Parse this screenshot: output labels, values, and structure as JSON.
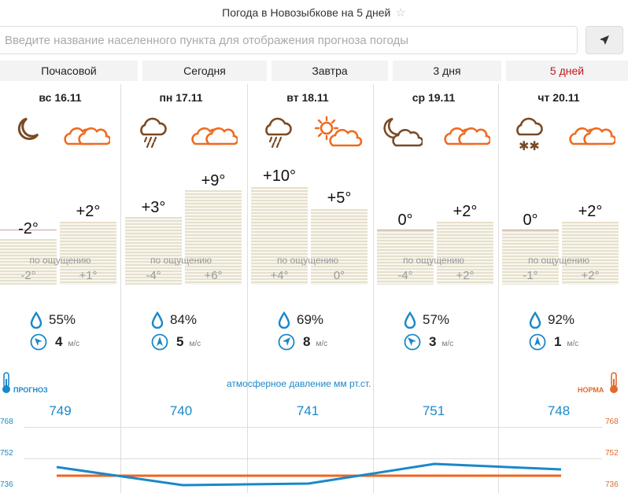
{
  "header": {
    "title": "Погода в Новозыбкове на 5 дней"
  },
  "search": {
    "placeholder": "Введите название населенного пункта для отображения прогноза погоды"
  },
  "tabs": [
    {
      "label": "Почасовой"
    },
    {
      "label": "Сегодня"
    },
    {
      "label": "Завтра"
    },
    {
      "label": "3 дня"
    },
    {
      "label": "5 дней",
      "active": true
    }
  ],
  "feels_label": "по ощущению",
  "wind_unit": "м/с",
  "days": [
    {
      "date": "вс 16.11",
      "night_icon": "moon-icon",
      "day_icon": "cloudy-icon",
      "night_temp": "-2°",
      "day_temp": "+2°",
      "night_feels": "-2°",
      "day_feels": "+1°",
      "humidity": "55%",
      "wind": "4",
      "pressure": "749"
    },
    {
      "date": "пн 17.11",
      "night_icon": "rain-cloud-icon",
      "day_icon": "cloudy-icon",
      "night_temp": "+3°",
      "day_temp": "+9°",
      "night_feels": "-4°",
      "day_feels": "+6°",
      "humidity": "84%",
      "wind": "5",
      "pressure": "740"
    },
    {
      "date": "вт 18.11",
      "night_icon": "rain-cloud-icon",
      "day_icon": "sun-cloud-icon",
      "night_temp": "+10°",
      "day_temp": "+5°",
      "night_feels": "+4°",
      "day_feels": "0°",
      "humidity": "69%",
      "wind": "8",
      "pressure": "741"
    },
    {
      "date": "ср 19.11",
      "night_icon": "moon-cloud-icon",
      "day_icon": "cloudy-icon",
      "night_temp": "0°",
      "day_temp": "+2°",
      "night_feels": "-4°",
      "day_feels": "+2°",
      "humidity": "57%",
      "wind": "3",
      "pressure": "751"
    },
    {
      "date": "чт 20.11",
      "night_icon": "snow-cloud-icon",
      "day_icon": "cloudy-icon",
      "night_temp": "0°",
      "day_temp": "+2°",
      "night_feels": "-1°",
      "day_feels": "+2°",
      "humidity": "92%",
      "wind": "1",
      "pressure": "748"
    }
  ],
  "pressure_chart": {
    "label": "атмосферное давление  мм рт.ст.",
    "legend_forecast": "ПРОГНОЗ",
    "legend_norm": "НОРМА",
    "scale": [
      "768",
      "752",
      "736"
    ],
    "colors": {
      "forecast": "#1a88c9",
      "norm": "#f0641e"
    }
  }
}
